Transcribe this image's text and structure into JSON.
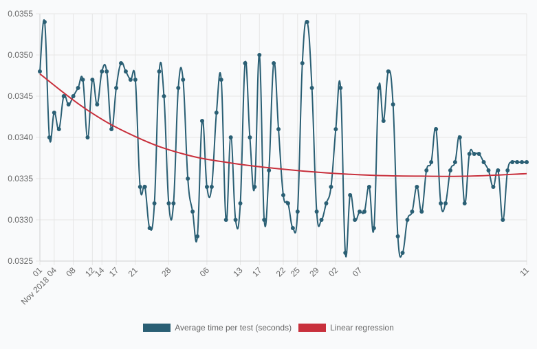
{
  "chart_data": {
    "type": "line",
    "ylim": [
      0.0325,
      0.0355
    ],
    "ytick_labels": [
      "0.0325",
      "0.0330",
      "0.0335",
      "0.0340",
      "0.0345",
      "0.0350",
      "0.0355"
    ],
    "ytick_values": [
      0.0325,
      0.033,
      0.0335,
      0.034,
      0.0345,
      0.035,
      0.0355
    ],
    "x_range": [
      "2018-11-01",
      "2019-02-11"
    ],
    "xtick_labels": [
      {
        "date": "2018-11-01",
        "label": "01",
        "sublabel": "Nov 2018"
      },
      {
        "date": "2018-11-04",
        "label": "04"
      },
      {
        "date": "2018-11-08",
        "label": "08"
      },
      {
        "date": "2018-11-12",
        "label": "12"
      },
      {
        "date": "2018-11-14",
        "label": "14"
      },
      {
        "date": "2018-11-17",
        "label": "17"
      },
      {
        "date": "2018-11-21",
        "label": "21"
      },
      {
        "date": "2018-11-28",
        "label": "28"
      },
      {
        "date": "2018-12-06",
        "label": "06"
      },
      {
        "date": "2018-12-13",
        "label": "13"
      },
      {
        "date": "2018-12-17",
        "label": "17"
      },
      {
        "date": "2018-12-22",
        "label": "22"
      },
      {
        "date": "2018-12-25",
        "label": "25"
      },
      {
        "date": "2018-12-29",
        "label": "29"
      },
      {
        "date": "2019-01-02",
        "label": "02"
      },
      {
        "date": "2019-01-07",
        "label": "07"
      },
      {
        "date": "2019-02-11",
        "label": "11"
      }
    ],
    "grid": true,
    "legend_position": "bottom",
    "series": [
      {
        "name": "Average time per test (seconds)",
        "color": "#2a5f74",
        "x": [
          "2018-11-01",
          "2018-11-02",
          "2018-11-03",
          "2018-11-04",
          "2018-11-05",
          "2018-11-06",
          "2018-11-07",
          "2018-11-08",
          "2018-11-09",
          "2018-11-10",
          "2018-11-11",
          "2018-11-12",
          "2018-11-13",
          "2018-11-14",
          "2018-11-15",
          "2018-11-16",
          "2018-11-17",
          "2018-11-18",
          "2018-11-19",
          "2018-11-20",
          "2018-11-21",
          "2018-11-22",
          "2018-11-23",
          "2018-11-24",
          "2018-11-25",
          "2018-11-26",
          "2018-11-27",
          "2018-11-28",
          "2018-11-29",
          "2018-11-30",
          "2018-12-01",
          "2018-12-02",
          "2018-12-03",
          "2018-12-04",
          "2018-12-05",
          "2018-12-06",
          "2018-12-07",
          "2018-12-08",
          "2018-12-09",
          "2018-12-10",
          "2018-12-11",
          "2018-12-12",
          "2018-12-13",
          "2018-12-14",
          "2018-12-15",
          "2018-12-16",
          "2018-12-17",
          "2018-12-18",
          "2018-12-19",
          "2018-12-20",
          "2018-12-21",
          "2018-12-22",
          "2018-12-23",
          "2018-12-24",
          "2018-12-25",
          "2018-12-26",
          "2018-12-27",
          "2018-12-28",
          "2018-12-29",
          "2018-12-30",
          "2018-12-31",
          "2019-01-01",
          "2019-01-02",
          "2019-01-03",
          "2019-01-04",
          "2019-01-05",
          "2019-01-06",
          "2019-01-07",
          "2019-01-08",
          "2019-01-09",
          "2019-01-10",
          "2019-01-11",
          "2019-01-12",
          "2019-01-13",
          "2019-01-14",
          "2019-01-15",
          "2019-01-16",
          "2019-01-17",
          "2019-01-18",
          "2019-01-19",
          "2019-01-20",
          "2019-01-21",
          "2019-01-22",
          "2019-01-23",
          "2019-01-24",
          "2019-01-25",
          "2019-01-26",
          "2019-01-27",
          "2019-01-28",
          "2019-01-29",
          "2019-01-30",
          "2019-01-31",
          "2019-02-01",
          "2019-02-02",
          "2019-02-03",
          "2019-02-04",
          "2019-02-05",
          "2019-02-06",
          "2019-02-07",
          "2019-02-08",
          "2019-02-09",
          "2019-02-10",
          "2019-02-11"
        ],
        "y": [
          0.0348,
          0.0354,
          0.034,
          0.0343,
          0.0341,
          0.0345,
          0.0344,
          0.0345,
          0.0346,
          0.0347,
          0.034,
          0.0347,
          0.0344,
          0.0348,
          0.0348,
          0.0341,
          0.0346,
          0.0349,
          0.0348,
          0.0347,
          0.0347,
          0.0334,
          0.0334,
          0.0329,
          0.0332,
          0.0348,
          0.0345,
          0.0332,
          0.0332,
          0.0346,
          0.0347,
          0.0335,
          0.0331,
          0.0328,
          0.0342,
          0.0334,
          0.0334,
          0.0343,
          0.0347,
          0.033,
          0.034,
          0.033,
          0.0332,
          0.0349,
          0.034,
          0.0334,
          0.035,
          0.033,
          0.0336,
          0.0349,
          0.0341,
          0.0333,
          0.0332,
          0.0329,
          0.0331,
          0.0349,
          0.0354,
          0.0346,
          0.0331,
          0.033,
          0.0332,
          0.0334,
          0.0341,
          0.0346,
          0.0326,
          0.0333,
          0.033,
          0.0331,
          0.0331,
          0.0334,
          0.0329,
          0.0346,
          0.0342,
          0.0348,
          0.0344,
          0.0328,
          0.0326,
          0.033,
          0.0331,
          0.0334,
          0.0331,
          0.0336,
          0.0337,
          0.0341,
          0.0332,
          0.0332,
          0.0336,
          0.0337,
          0.034,
          0.0332,
          0.0338,
          0.0338,
          0.0338,
          0.0337,
          0.0336,
          0.0334,
          0.0336,
          0.033,
          0.0336,
          0.0337,
          0.0337,
          0.0337,
          0.0337
        ]
      },
      {
        "name": "Linear regression",
        "color": "#c8303c",
        "x": [
          "2018-11-01",
          "2018-11-11",
          "2018-11-21",
          "2018-12-01",
          "2018-12-11",
          "2018-12-21",
          "2018-12-31",
          "2019-01-10",
          "2019-01-20",
          "2019-01-30",
          "2019-02-11"
        ],
        "y": [
          0.03477,
          0.03433,
          0.03401,
          0.0338,
          0.03369,
          0.03362,
          0.03357,
          0.03354,
          0.03353,
          0.03353,
          0.03356
        ]
      }
    ]
  },
  "legend": {
    "items": [
      {
        "label": "Average time per test (seconds)",
        "color": "#2a5f74"
      },
      {
        "label": "Linear regression",
        "color": "#c8303c"
      }
    ]
  }
}
